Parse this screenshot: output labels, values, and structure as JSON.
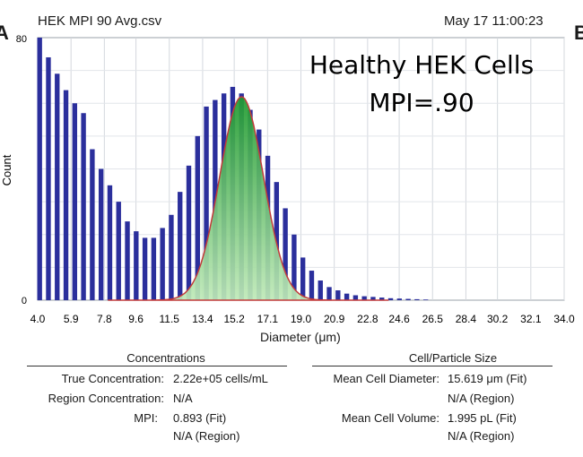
{
  "panel_labels": {
    "left": "A",
    "right": "B"
  },
  "header": {
    "filename": "HEK MPI 90 Avg.csv",
    "timestamp": "May 17 11:00:23"
  },
  "annotation": {
    "line1": "Healthy HEK Cells",
    "line2": "MPI=.90"
  },
  "chart_data": {
    "type": "bar",
    "title": "HEK MPI 90 Avg.csv",
    "xlabel": "Diameter (μm)",
    "ylabel": "Count",
    "xlim": [
      4.0,
      34.0
    ],
    "ylim": [
      0,
      80
    ],
    "x_ticks": [
      "4.0",
      "5.9",
      "7.8",
      "9.6",
      "11.5",
      "13.4",
      "15.2",
      "17.1",
      "19.0",
      "20.9",
      "22.8",
      "24.6",
      "26.5",
      "28.4",
      "30.2",
      "32.1",
      "34.0"
    ],
    "y_ticks": [
      "80",
      "0"
    ],
    "series": [
      {
        "name": "Histogram",
        "color": "#2b2f9c",
        "x": [
          4.0,
          4.5,
          5.0,
          5.5,
          6.0,
          6.5,
          7.0,
          7.5,
          8.0,
          8.5,
          9.0,
          9.5,
          10.0,
          10.5,
          11.0,
          11.5,
          12.0,
          12.5,
          13.0,
          13.5,
          14.0,
          14.5,
          15.0,
          15.5,
          16.0,
          16.5,
          17.0,
          17.5,
          18.0,
          18.5,
          19.0,
          19.5,
          20.0,
          20.5,
          21.0,
          21.5,
          22.0,
          22.5,
          23.0,
          23.5,
          24.0,
          24.5,
          25.0,
          25.5,
          26.0
        ],
        "values": [
          80,
          74,
          69,
          64,
          60,
          57,
          46,
          40,
          35,
          30,
          24,
          21,
          19,
          19,
          22,
          26,
          33,
          41,
          50,
          59,
          61,
          63,
          65,
          63,
          58,
          52,
          44,
          36,
          28,
          20,
          13,
          9,
          6,
          4,
          3,
          2,
          1.5,
          1.2,
          1,
          0.8,
          0.6,
          0.5,
          0.4,
          0.3,
          0.2
        ]
      },
      {
        "name": "Fit",
        "color": "#2eb03a",
        "mean": 15.619,
        "sd": 1.25,
        "peak": 62
      }
    ]
  },
  "concentrations": {
    "title": "Concentrations",
    "rows": [
      {
        "label": "True Concentration:",
        "value": "2.22e+05 cells/mL"
      },
      {
        "label": "Region Concentration:",
        "value": "N/A"
      },
      {
        "label": "MPI:",
        "value": "0.893 (Fit)"
      },
      {
        "label": "",
        "value": "N/A (Region)"
      }
    ]
  },
  "size": {
    "title": "Cell/Particle Size",
    "rows": [
      {
        "label": "Mean Cell Diameter:",
        "value": "15.619 μm (Fit)"
      },
      {
        "label": "",
        "value": "N/A (Region)"
      },
      {
        "label": "Mean Cell Volume:",
        "value": "1.995 pL (Fit)"
      },
      {
        "label": "",
        "value": "N/A (Region)"
      }
    ]
  }
}
